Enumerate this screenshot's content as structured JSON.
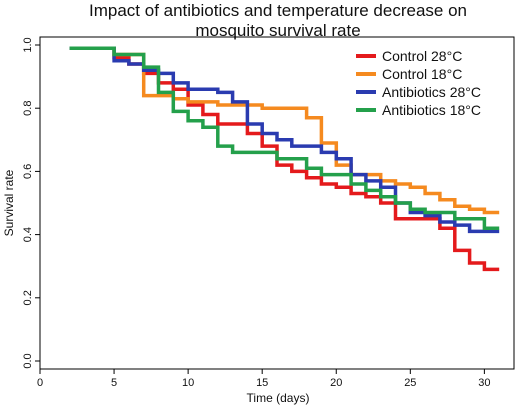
{
  "chart_data": {
    "type": "line",
    "step": true,
    "title_lines": [
      "Impact of antibiotics and temperature decrease on",
      "mosquito survival rate"
    ],
    "xlabel": "Time (days)",
    "ylabel": "Survival rate",
    "xlim": [
      0,
      32
    ],
    "ylim": [
      0,
      1.0
    ],
    "x_ticks": [
      0,
      5,
      10,
      15,
      20,
      25,
      30
    ],
    "y_ticks": [
      0.0,
      0.2,
      0.4,
      0.6,
      0.8,
      1.0
    ],
    "y_tick_labels": [
      "0.0",
      "0.2",
      "0.4",
      "0.6",
      "0.8",
      "1.0"
    ],
    "grid": false,
    "legend_position": "top-right",
    "series": [
      {
        "name": "Control 28°C",
        "color": "#e41a1c",
        "x": [
          2,
          5,
          6,
          7,
          8,
          9,
          10,
          11,
          12,
          14,
          15,
          16,
          17,
          18,
          19,
          20,
          21,
          22,
          23,
          24,
          27,
          28,
          29,
          30,
          31
        ],
        "y": [
          0.99,
          0.96,
          0.94,
          0.91,
          0.88,
          0.86,
          0.81,
          0.78,
          0.75,
          0.72,
          0.68,
          0.62,
          0.6,
          0.58,
          0.56,
          0.55,
          0.53,
          0.52,
          0.5,
          0.45,
          0.42,
          0.35,
          0.31,
          0.29,
          0.29
        ]
      },
      {
        "name": "Control 18°C",
        "color": "#f58a1f",
        "x": [
          2,
          5,
          7,
          9,
          10,
          12,
          15,
          18,
          19,
          20,
          21,
          23,
          24,
          25,
          26,
          27,
          28,
          29,
          30,
          31
        ],
        "y": [
          0.99,
          0.97,
          0.84,
          0.83,
          0.82,
          0.81,
          0.8,
          0.77,
          0.69,
          0.62,
          0.59,
          0.57,
          0.56,
          0.55,
          0.53,
          0.51,
          0.49,
          0.48,
          0.47,
          0.47
        ]
      },
      {
        "name": "Antibiotics 28°C",
        "color": "#2a3bb0",
        "x": [
          2,
          5,
          6,
          7,
          8,
          9,
          10,
          12,
          13,
          14,
          15,
          16,
          17,
          19,
          20,
          21,
          22,
          23,
          24,
          25,
          26,
          27,
          28,
          29,
          30,
          31
        ],
        "y": [
          0.99,
          0.95,
          0.94,
          0.92,
          0.91,
          0.88,
          0.86,
          0.85,
          0.82,
          0.75,
          0.72,
          0.7,
          0.68,
          0.66,
          0.64,
          0.59,
          0.57,
          0.55,
          0.5,
          0.47,
          0.46,
          0.44,
          0.43,
          0.41,
          0.41,
          0.41
        ]
      },
      {
        "name": "Antibiotics 18°C",
        "color": "#24a04b",
        "x": [
          2,
          5,
          7,
          8,
          9,
          10,
          11,
          12,
          13,
          16,
          18,
          19,
          21,
          22,
          23,
          24,
          25,
          26,
          28,
          30,
          31
        ],
        "y": [
          0.99,
          0.97,
          0.93,
          0.85,
          0.79,
          0.76,
          0.74,
          0.68,
          0.66,
          0.64,
          0.61,
          0.59,
          0.56,
          0.54,
          0.52,
          0.5,
          0.48,
          0.47,
          0.45,
          0.42,
          0.42
        ]
      }
    ]
  }
}
